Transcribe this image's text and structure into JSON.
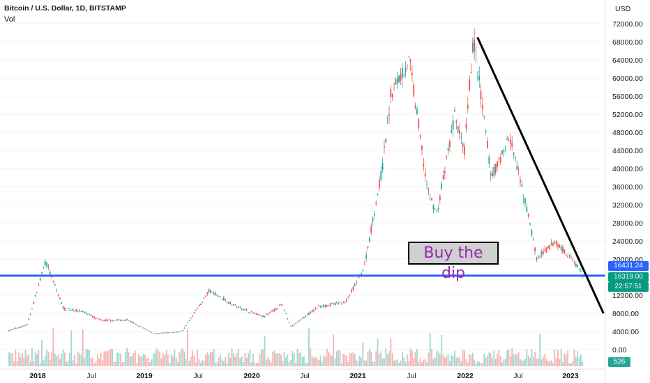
{
  "header": {
    "title": "Bitcoin / U.S. Dollar, 1D, BITSTAMP",
    "volume_label": "Vol"
  },
  "currency": "USD",
  "annotation": "Buy the dip",
  "price_tags": {
    "last": "16431.24",
    "line": "16319.00",
    "countdown": "22:57:51",
    "volume": "526"
  },
  "colors": {
    "up": "#26a69a",
    "down": "#ef5350",
    "hline": "#2962ff",
    "trend": "#000000",
    "note_text": "#9c27b0",
    "note_bg": "#cfd0d0"
  },
  "chart_data": {
    "type": "candlestick",
    "y_axis": {
      "min": 0,
      "max": 72000,
      "ticks": [
        "72000.00",
        "68000.00",
        "64000.00",
        "60000.00",
        "56000.00",
        "52000.00",
        "48000.00",
        "44000.00",
        "40000.00",
        "36000.00",
        "32000.00",
        "28000.00",
        "24000.00",
        "20000.00",
        "12000.00",
        "8000.00",
        "4000.00",
        "0.00"
      ]
    },
    "x_axis": {
      "ticks": [
        {
          "label": "2018",
          "year": true
        },
        {
          "label": "Jul",
          "year": false
        },
        {
          "label": "2019",
          "year": true
        },
        {
          "label": "Jul",
          "year": false
        },
        {
          "label": "2020",
          "year": true
        },
        {
          "label": "Jul",
          "year": false
        },
        {
          "label": "2021",
          "year": true
        },
        {
          "label": "Jul",
          "year": false
        },
        {
          "label": "2022",
          "year": true
        },
        {
          "label": "Jul",
          "year": false
        },
        {
          "label": "2023",
          "year": true
        }
      ]
    },
    "horizontal_line": 16319,
    "trend_line": {
      "from": {
        "x": "2021-11",
        "y": 69000
      },
      "to": {
        "x": "2023-01",
        "y": 8000
      }
    },
    "price_path": [
      {
        "x": "2017-08",
        "y": 4200
      },
      {
        "x": "2017-10",
        "y": 5500
      },
      {
        "x": "2017-12",
        "y": 19500
      },
      {
        "x": "2018-02",
        "y": 9000
      },
      {
        "x": "2018-04",
        "y": 8500
      },
      {
        "x": "2018-06",
        "y": 6500
      },
      {
        "x": "2018-09",
        "y": 6500
      },
      {
        "x": "2018-12",
        "y": 3500
      },
      {
        "x": "2019-03",
        "y": 4000
      },
      {
        "x": "2019-06",
        "y": 13000
      },
      {
        "x": "2019-09",
        "y": 9500
      },
      {
        "x": "2019-12",
        "y": 7200
      },
      {
        "x": "2020-02",
        "y": 10000
      },
      {
        "x": "2020-03",
        "y": 5000
      },
      {
        "x": "2020-06",
        "y": 9500
      },
      {
        "x": "2020-09",
        "y": 10500
      },
      {
        "x": "2020-11",
        "y": 18000
      },
      {
        "x": "2021-01",
        "y": 40000
      },
      {
        "x": "2021-02",
        "y": 57000
      },
      {
        "x": "2021-04",
        "y": 64000
      },
      {
        "x": "2021-06",
        "y": 35000
      },
      {
        "x": "2021-07",
        "y": 30000
      },
      {
        "x": "2021-09",
        "y": 52000
      },
      {
        "x": "2021-10",
        "y": 43000
      },
      {
        "x": "2021-11",
        "y": 69000
      },
      {
        "x": "2022-01",
        "y": 38000
      },
      {
        "x": "2022-03",
        "y": 47000
      },
      {
        "x": "2022-05",
        "y": 30000
      },
      {
        "x": "2022-06",
        "y": 20000
      },
      {
        "x": "2022-08",
        "y": 24000
      },
      {
        "x": "2022-10",
        "y": 19500
      },
      {
        "x": "2022-11",
        "y": 16400
      }
    ]
  }
}
